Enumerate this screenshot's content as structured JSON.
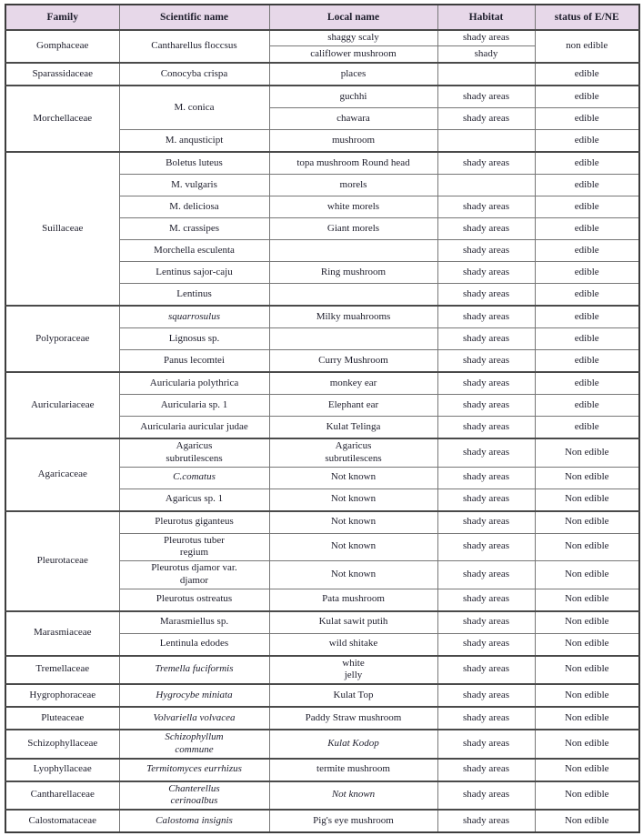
{
  "table": {
    "title": "mushroom-family-edibility-table",
    "header_bg": "#e7d8e9",
    "grid_color": "#777777",
    "text_color": "#1d1d2b",
    "columns": [
      "Family",
      "Scientific name",
      "Local name",
      "Habitat",
      "status of E/NE"
    ],
    "rows": [
      {
        "group_start": true,
        "cells": [
          {
            "text": "Gomphaceae",
            "rowspan": 2
          },
          {
            "text": "Cantharellus floccsus",
            "rowspan": 2
          },
          {
            "text": "shaggy scaly"
          },
          {
            "text": "shady areas"
          },
          {
            "text": "non edible",
            "rowspan": 2
          }
        ]
      },
      {
        "group_start": false,
        "cells": [
          {
            "text": "califlower mushroom"
          },
          {
            "text": "shady"
          }
        ]
      },
      {
        "group_start": true,
        "cells": [
          {
            "text": "Sparassidaceae"
          },
          {
            "text": "Conocyba crispa"
          },
          {
            "text": "places"
          },
          {
            "text": ""
          },
          {
            "text": "edible"
          }
        ]
      },
      {
        "group_start": true,
        "cells": [
          {
            "text": "Morchellaceae",
            "rowspan": 3
          },
          {
            "text": "M. conica",
            "rowspan": 2
          },
          {
            "text": "guchhi"
          },
          {
            "text": "shady areas"
          },
          {
            "text": "edible"
          }
        ]
      },
      {
        "group_start": false,
        "cells": [
          {
            "text": "chawara"
          },
          {
            "text": "shady areas"
          },
          {
            "text": "edible"
          }
        ]
      },
      {
        "group_start": false,
        "cells": [
          {
            "text": "M. anqusticipt"
          },
          {
            "text": "mushroom"
          },
          {
            "text": ""
          },
          {
            "text": "edible"
          }
        ]
      },
      {
        "group_start": true,
        "cells": [
          {
            "text": "Suillaceae",
            "rowspan": 7
          },
          {
            "text": "Boletus luteus"
          },
          {
            "text": "topa mushroom Round head"
          },
          {
            "text": "shady areas"
          },
          {
            "text": "edible"
          }
        ]
      },
      {
        "group_start": false,
        "cells": [
          {
            "text": "M. vulgaris"
          },
          {
            "text": "morels"
          },
          {
            "text": ""
          },
          {
            "text": "edible"
          }
        ]
      },
      {
        "group_start": false,
        "cells": [
          {
            "text": "M. deliciosa"
          },
          {
            "text": "white morels"
          },
          {
            "text": "shady areas"
          },
          {
            "text": "edible"
          }
        ]
      },
      {
        "group_start": false,
        "cells": [
          {
            "text": "M. crassipes"
          },
          {
            "text": "Giant morels"
          },
          {
            "text": "shady areas"
          },
          {
            "text": "edible"
          }
        ]
      },
      {
        "group_start": false,
        "cells": [
          {
            "text": "Morchella esculenta"
          },
          {
            "text": ""
          },
          {
            "text": "shady areas"
          },
          {
            "text": "edible"
          }
        ]
      },
      {
        "group_start": false,
        "cells": [
          {
            "text": "Lentinus sajor-caju"
          },
          {
            "text": "Ring mushroom"
          },
          {
            "text": "shady areas"
          },
          {
            "text": "edible"
          }
        ]
      },
      {
        "group_start": false,
        "cells": [
          {
            "text": "Lentinus"
          },
          {
            "text": ""
          },
          {
            "text": "shady areas"
          },
          {
            "text": "edible"
          }
        ]
      },
      {
        "group_start": true,
        "cells": [
          {
            "text": "Polyporaceae",
            "rowspan": 3
          },
          {
            "text": "squarrosulus",
            "italic": true
          },
          {
            "text": "Milky muahrooms"
          },
          {
            "text": "shady areas"
          },
          {
            "text": "edible"
          }
        ]
      },
      {
        "group_start": false,
        "cells": [
          {
            "text": "Lignosus sp."
          },
          {
            "text": ""
          },
          {
            "text": "shady areas"
          },
          {
            "text": "edible"
          }
        ]
      },
      {
        "group_start": false,
        "cells": [
          {
            "text": "Panus lecomtei"
          },
          {
            "text": "Curry Mushroom"
          },
          {
            "text": "shady areas"
          },
          {
            "text": "edible"
          }
        ]
      },
      {
        "group_start": true,
        "cells": [
          {
            "text": "Auriculariaceae",
            "rowspan": 3
          },
          {
            "text": "Auricularia polythrica"
          },
          {
            "text": "monkey ear"
          },
          {
            "text": "shady areas"
          },
          {
            "text": "edible"
          }
        ]
      },
      {
        "group_start": false,
        "cells": [
          {
            "text": "Auricularia sp. 1"
          },
          {
            "text": "Elephant ear"
          },
          {
            "text": "shady areas"
          },
          {
            "text": "edible"
          }
        ]
      },
      {
        "group_start": false,
        "cells": [
          {
            "text": "Auricularia auricular judae"
          },
          {
            "text": "Kulat Telinga"
          },
          {
            "text": "shady areas"
          },
          {
            "text": "edible"
          }
        ]
      },
      {
        "group_start": true,
        "cells": [
          {
            "text": "Agaricaceae",
            "rowspan": 3
          },
          {
            "lines": [
              "Agaricus",
              "subrutilescens"
            ]
          },
          {
            "lines": [
              "Agaricus",
              "subrutilescens"
            ]
          },
          {
            "text": "shady areas"
          },
          {
            "text": "Non edible"
          }
        ]
      },
      {
        "group_start": false,
        "cells": [
          {
            "text": "C.comatus",
            "italic": true
          },
          {
            "text": "Not known"
          },
          {
            "text": "shady areas"
          },
          {
            "text": "Non edible"
          }
        ]
      },
      {
        "group_start": false,
        "cells": [
          {
            "text": "Agaricus sp. 1"
          },
          {
            "text": "Not known"
          },
          {
            "text": "shady areas"
          },
          {
            "text": "Non edible"
          }
        ]
      },
      {
        "group_start": true,
        "cells": [
          {
            "text": "Pleurotaceae",
            "rowspan": 4
          },
          {
            "text": "Pleurotus giganteus"
          },
          {
            "text": "Not known"
          },
          {
            "text": "shady areas"
          },
          {
            "text": "Non edible"
          }
        ]
      },
      {
        "group_start": false,
        "cells": [
          {
            "lines": [
              "Pleurotus tuber",
              "regium"
            ]
          },
          {
            "text": "Not known"
          },
          {
            "text": "shady areas"
          },
          {
            "text": "Non edible"
          }
        ]
      },
      {
        "group_start": false,
        "cells": [
          {
            "lines": [
              "Pleurotus djamor var.",
              "djamor"
            ]
          },
          {
            "text": "Not known"
          },
          {
            "text": "shady areas"
          },
          {
            "text": "Non edible"
          }
        ]
      },
      {
        "group_start": false,
        "cells": [
          {
            "text": "Pleurotus ostreatus"
          },
          {
            "text": "Pata mushroom"
          },
          {
            "text": "shady areas"
          },
          {
            "text": "Non edible"
          }
        ]
      },
      {
        "group_start": true,
        "cells": [
          {
            "text": "Marasmiaceae",
            "rowspan": 2
          },
          {
            "text": "Marasmiellus sp."
          },
          {
            "text": "Kulat sawit putih"
          },
          {
            "text": "shady areas"
          },
          {
            "text": "Non edible"
          }
        ]
      },
      {
        "group_start": false,
        "cells": [
          {
            "text": "Lentinula edodes"
          },
          {
            "text": "wild shitake"
          },
          {
            "text": "shady areas"
          },
          {
            "text": "Non edible"
          }
        ]
      },
      {
        "group_start": true,
        "cells": [
          {
            "text": "Tremellaceae"
          },
          {
            "text": "Tremella fuciformis",
            "italic": true
          },
          {
            "lines": [
              "white",
              "jelly"
            ]
          },
          {
            "text": "shady areas"
          },
          {
            "text": "Non edible"
          }
        ]
      },
      {
        "group_start": true,
        "cells": [
          {
            "text": "Hygrophoraceae"
          },
          {
            "text": "Hygrocybe miniata",
            "italic": true
          },
          {
            "text": "Kulat Top"
          },
          {
            "text": "shady areas"
          },
          {
            "text": "Non edible"
          }
        ]
      },
      {
        "group_start": true,
        "cells": [
          {
            "text": "Pluteaceae"
          },
          {
            "text": "Volvariella volvacea",
            "italic": true
          },
          {
            "text": "Paddy Straw mushroom"
          },
          {
            "text": "shady areas"
          },
          {
            "text": "Non edible"
          }
        ]
      },
      {
        "group_start": true,
        "cells": [
          {
            "text": "Schizophyllaceae"
          },
          {
            "lines": [
              "Schizophyllum",
              "commune"
            ],
            "italic": true
          },
          {
            "text": "Kulat Kodop",
            "italic": true
          },
          {
            "text": "shady areas"
          },
          {
            "text": "Non edible"
          }
        ]
      },
      {
        "group_start": true,
        "cells": [
          {
            "text": "Lyophyllaceae"
          },
          {
            "text": "Termitomyces eurrhizus",
            "italic": true
          },
          {
            "text": "termite mushroom"
          },
          {
            "text": "shady areas"
          },
          {
            "text": "Non edible"
          }
        ]
      },
      {
        "group_start": true,
        "cells": [
          {
            "text": "Cantharellaceae"
          },
          {
            "lines": [
              "Chanterellus",
              "cerinoalbus"
            ],
            "italic": true
          },
          {
            "text": "Not known",
            "italic": true
          },
          {
            "text": "shady areas"
          },
          {
            "text": "Non edible"
          }
        ]
      },
      {
        "group_start": true,
        "cells": [
          {
            "text": "Calostomataceae"
          },
          {
            "text": "Calostoma insignis",
            "italic": true
          },
          {
            "text": "Pig's eye mushroom"
          },
          {
            "text": "shady areas"
          },
          {
            "text": "Non edible"
          }
        ]
      }
    ]
  }
}
